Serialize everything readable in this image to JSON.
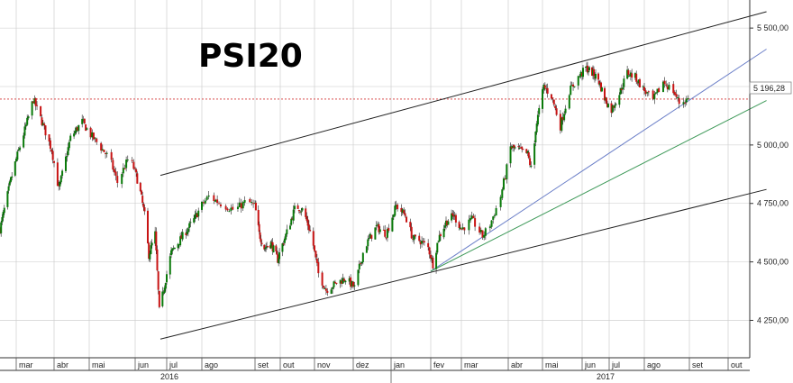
{
  "chart_data": {
    "type": "candlestick",
    "title": "PSI20",
    "y_ticks": [
      4250,
      4500,
      4750,
      5000,
      5250,
      5500
    ],
    "y_tick_labels": [
      "4 250,00",
      "4 500,00",
      "4 750,00",
      "5 000,00",
      "5 250,00",
      "5 500,00"
    ],
    "ylim": [
      4090,
      5620
    ],
    "x_months": [
      "mar",
      "abr",
      "mai",
      "jun",
      "jul",
      "ago",
      "set",
      "out",
      "nov",
      "dez",
      "jan",
      "fev",
      "mar",
      "abr",
      "mai",
      "jun",
      "jul",
      "ago",
      "set",
      "out"
    ],
    "x_years": [
      "2016",
      "2017"
    ],
    "last_value": 5196.28,
    "last_value_label": "5 196,28",
    "grid": true,
    "price_path": [
      [
        "2016-02-15",
        4640
      ],
      [
        "2016-02-25",
        4850
      ],
      [
        "2016-03-10",
        5100
      ],
      [
        "2016-03-15",
        5195
      ],
      [
        "2016-03-22",
        5100
      ],
      [
        "2016-03-30",
        4980
      ],
      [
        "2016-04-05",
        4810
      ],
      [
        "2016-04-15",
        5030
      ],
      [
        "2016-04-25",
        5100
      ],
      [
        "2016-05-05",
        5020
      ],
      [
        "2016-05-15",
        4940
      ],
      [
        "2016-05-20",
        4840
      ],
      [
        "2016-05-28",
        4950
      ],
      [
        "2016-06-05",
        4820
      ],
      [
        "2016-06-10",
        4700
      ],
      [
        "2016-06-14",
        4530
      ],
      [
        "2016-06-20",
        4620
      ],
      [
        "2016-06-24",
        4290
      ],
      [
        "2016-06-28",
        4380
      ],
      [
        "2016-07-05",
        4540
      ],
      [
        "2016-07-15",
        4610
      ],
      [
        "2016-07-25",
        4680
      ],
      [
        "2016-08-05",
        4780
      ],
      [
        "2016-08-12",
        4750
      ],
      [
        "2016-08-20",
        4720
      ],
      [
        "2016-08-27",
        4760
      ],
      [
        "2016-09-01",
        4740
      ],
      [
        "2016-09-06",
        4620
      ],
      [
        "2016-09-12",
        4560
      ],
      [
        "2016-09-20",
        4580
      ],
      [
        "2016-09-28",
        4510
      ],
      [
        "2016-10-08",
        4640
      ],
      [
        "2016-10-15",
        4740
      ],
      [
        "2016-10-22",
        4720
      ],
      [
        "2016-10-30",
        4600
      ],
      [
        "2016-11-04",
        4450
      ],
      [
        "2016-11-10",
        4380
      ],
      [
        "2016-11-18",
        4410
      ],
      [
        "2016-11-25",
        4430
      ],
      [
        "2016-12-02",
        4390
      ],
      [
        "2016-12-10",
        4560
      ],
      [
        "2016-12-20",
        4650
      ],
      [
        "2016-12-28",
        4620
      ],
      [
        "2017-01-05",
        4740
      ],
      [
        "2017-01-12",
        4700
      ],
      [
        "2017-01-18",
        4600
      ],
      [
        "2017-01-24",
        4590
      ],
      [
        "2017-01-30",
        4560
      ],
      [
        "2017-02-03",
        4490
      ],
      [
        "2017-02-08",
        4600
      ],
      [
        "2017-02-15",
        4670
      ],
      [
        "2017-02-22",
        4700
      ],
      [
        "2017-03-01",
        4640
      ],
      [
        "2017-03-08",
        4680
      ],
      [
        "2017-03-15",
        4610
      ],
      [
        "2017-03-20",
        4660
      ],
      [
        "2017-03-27",
        4780
      ],
      [
        "2017-04-03",
        4990
      ],
      [
        "2017-04-10",
        4980
      ],
      [
        "2017-04-18",
        4960
      ],
      [
        "2017-04-22",
        4880
      ],
      [
        "2017-04-25",
        5070
      ],
      [
        "2017-05-02",
        5250
      ],
      [
        "2017-05-08",
        5210
      ],
      [
        "2017-05-15",
        5080
      ],
      [
        "2017-05-22",
        5230
      ],
      [
        "2017-05-29",
        5290
      ],
      [
        "2017-06-05",
        5330
      ],
      [
        "2017-06-12",
        5310
      ],
      [
        "2017-06-19",
        5280
      ],
      [
        "2017-06-26",
        5200
      ],
      [
        "2017-07-03",
        5150
      ],
      [
        "2017-07-10",
        5220
      ],
      [
        "2017-07-17",
        5310
      ],
      [
        "2017-07-24",
        5290
      ],
      [
        "2017-07-31",
        5240
      ],
      [
        "2017-08-07",
        5190
      ],
      [
        "2017-08-14",
        5270
      ],
      [
        "2017-08-21",
        5230
      ],
      [
        "2017-08-25",
        5180
      ],
      [
        "2017-08-31",
        5196
      ]
    ],
    "trendlines": [
      {
        "color": "#222222",
        "points": [
          [
            "2016-06-25",
            4870
          ],
          [
            "2017-10-31",
            5570
          ]
        ]
      },
      {
        "color": "#222222",
        "points": [
          [
            "2016-06-25",
            4170
          ],
          [
            "2017-10-31",
            4810
          ]
        ]
      },
      {
        "color": "#6b7fc8",
        "points": [
          [
            "2017-02-01",
            4460
          ],
          [
            "2017-10-31",
            5410
          ]
        ]
      },
      {
        "color": "#3f9a5a",
        "points": [
          [
            "2017-02-01",
            4460
          ],
          [
            "2017-10-31",
            5190
          ]
        ]
      }
    ],
    "colors": {
      "up": "#0a7a0a",
      "down": "#c81414",
      "wick": "#222222",
      "ref_line": "#d33333",
      "grid": "#c8c8c8"
    }
  }
}
